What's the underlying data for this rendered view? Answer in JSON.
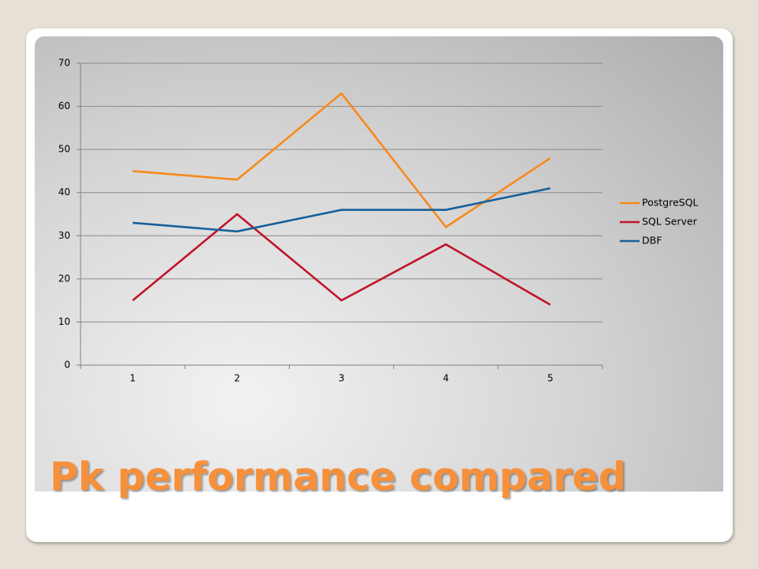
{
  "chart_data": {
    "type": "line",
    "title": "Pk performance compared",
    "categories": [
      "1",
      "2",
      "3",
      "4",
      "5"
    ],
    "series": [
      {
        "name": "PostgreSQL",
        "color": "#f7891c",
        "values": [
          45,
          43,
          63,
          32,
          48
        ]
      },
      {
        "name": "SQL Server",
        "color": "#c0142c",
        "values": [
          15,
          35,
          15,
          28,
          14
        ]
      },
      {
        "name": "DBF",
        "color": "#17609a",
        "values": [
          33,
          31,
          36,
          36,
          41
        ]
      }
    ],
    "ylim": [
      0,
      70
    ],
    "yticks": [
      0,
      10,
      20,
      30,
      40,
      50,
      60,
      70
    ],
    "grid": true,
    "legend": "right"
  }
}
